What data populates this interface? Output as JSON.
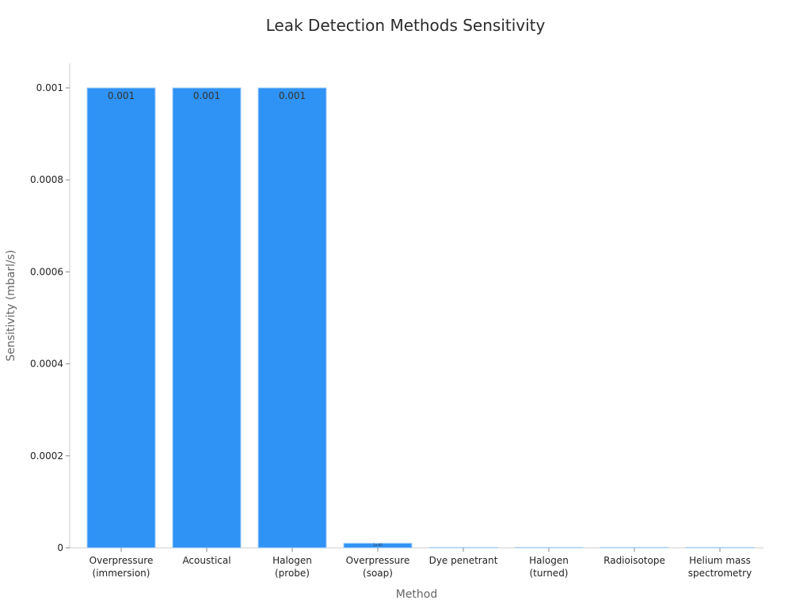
{
  "chart_data": {
    "type": "bar",
    "title": "Leak Detection Methods Sensitivity",
    "xlabel": "Method",
    "ylabel": "Sensitivity (mbarl/s)",
    "categories": [
      "Overpressure\n(immersion)",
      "Acoustical",
      "Halogen\n(probe)",
      "Overpressure\n(soap)",
      "Dye penetrant",
      "Halogen\n(turned)",
      "Radioisotope",
      "Helium mass\nspectrometry"
    ],
    "values": [
      0.001,
      0.001,
      0.001,
      1e-05,
      1e-06,
      1e-07,
      1e-08,
      1e-09
    ],
    "data_labels": [
      "0.001",
      "0.001",
      "0.001",
      "1e-05",
      "",
      "",
      "",
      ""
    ],
    "ylim": [
      0,
      0.00105
    ],
    "yticks": [
      0,
      0.0002,
      0.0004,
      0.0006,
      0.0008,
      0.001
    ],
    "ytick_labels": [
      "0",
      "0.0002",
      "0.0004",
      "0.0006",
      "0.0008",
      "0.001"
    ],
    "grid": false,
    "bar_color": "#2f92f5",
    "bar_edge_color": "#a9d0f7"
  }
}
